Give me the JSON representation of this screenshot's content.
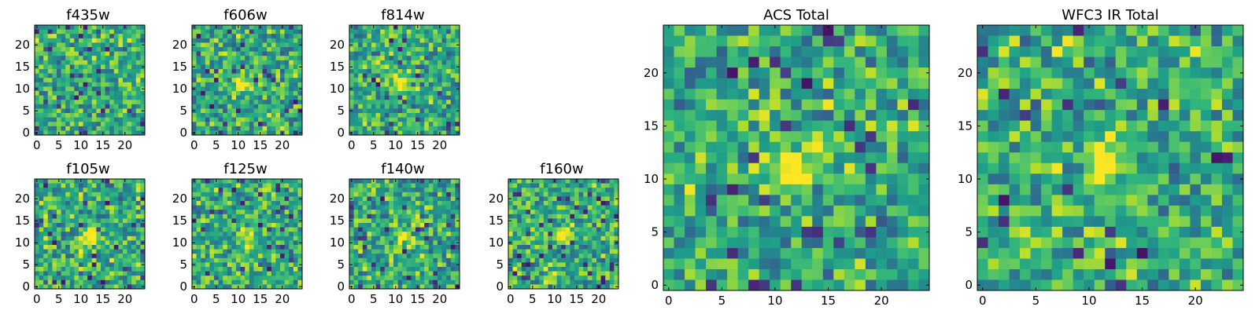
{
  "chart_data": [
    {
      "type": "heatmap",
      "title": "f435w",
      "xticks": [
        "0",
        "5",
        "10",
        "15",
        "20"
      ],
      "yticks": [
        "0",
        "5",
        "10",
        "15",
        "20"
      ],
      "xlim": [
        0,
        24
      ],
      "ylim": [
        0,
        24
      ],
      "grid_size": 25,
      "colormap": "viridis",
      "seed": 11,
      "blob": null
    },
    {
      "type": "heatmap",
      "title": "f606w",
      "xticks": [
        "0",
        "5",
        "10",
        "15",
        "20"
      ],
      "yticks": [
        "0",
        "5",
        "10",
        "15",
        "20"
      ],
      "xlim": [
        0,
        24
      ],
      "ylim": [
        0,
        24
      ],
      "grid_size": 25,
      "colormap": "viridis",
      "seed": 23,
      "blob": {
        "x": 11,
        "y": 11,
        "strength": 0.45
      }
    },
    {
      "type": "heatmap",
      "title": "f814w",
      "xticks": [
        "0",
        "5",
        "10",
        "15",
        "20"
      ],
      "yticks": [
        "0",
        "5",
        "10",
        "15",
        "20"
      ],
      "xlim": [
        0,
        24
      ],
      "ylim": [
        0,
        24
      ],
      "grid_size": 25,
      "colormap": "viridis",
      "seed": 37,
      "blob": {
        "x": 12,
        "y": 11,
        "strength": 0.45
      }
    },
    {
      "type": "heatmap",
      "title": "f105w",
      "xticks": [
        "0",
        "5",
        "10",
        "15",
        "20"
      ],
      "yticks": [
        "0",
        "5",
        "10",
        "15",
        "20"
      ],
      "xlim": [
        0,
        24
      ],
      "ylim": [
        0,
        24
      ],
      "grid_size": 25,
      "colormap": "viridis",
      "seed": 41,
      "blob": {
        "x": 12,
        "y": 11,
        "strength": 0.5
      }
    },
    {
      "type": "heatmap",
      "title": "f125w",
      "xticks": [
        "0",
        "5",
        "10",
        "15",
        "20"
      ],
      "yticks": [
        "0",
        "5",
        "10",
        "15",
        "20"
      ],
      "xlim": [
        0,
        24
      ],
      "ylim": [
        0,
        24
      ],
      "grid_size": 25,
      "colormap": "viridis",
      "seed": 53,
      "blob": {
        "x": 12,
        "y": 11,
        "strength": 0.3
      }
    },
    {
      "type": "heatmap",
      "title": "f140w",
      "xticks": [
        "0",
        "5",
        "10",
        "15",
        "20"
      ],
      "yticks": [
        "0",
        "5",
        "10",
        "15",
        "20"
      ],
      "xlim": [
        0,
        24
      ],
      "ylim": [
        0,
        24
      ],
      "grid_size": 25,
      "colormap": "viridis",
      "seed": 67,
      "blob": {
        "x": 12,
        "y": 11,
        "strength": 0.35
      }
    },
    {
      "type": "heatmap",
      "title": "f160w",
      "xticks": [
        "0",
        "5",
        "10",
        "15",
        "20"
      ],
      "yticks": [
        "0",
        "5",
        "10",
        "15",
        "20"
      ],
      "xlim": [
        0,
        24
      ],
      "ylim": [
        0,
        24
      ],
      "grid_size": 25,
      "colormap": "viridis",
      "seed": 71,
      "blob": {
        "x": 12,
        "y": 12,
        "strength": 0.4
      }
    },
    {
      "type": "heatmap",
      "title": "ACS Total",
      "xticks": [
        "0",
        "5",
        "10",
        "15",
        "20"
      ],
      "yticks": [
        "0",
        "5",
        "10",
        "15",
        "20"
      ],
      "xlim": [
        0,
        24
      ],
      "ylim": [
        0,
        24
      ],
      "grid_size": 25,
      "colormap": "viridis",
      "seed": 83,
      "blob": {
        "x": 11.5,
        "y": 11,
        "strength": 0.6
      }
    },
    {
      "type": "heatmap",
      "title": "WFC3 IR Total",
      "xticks": [
        "0",
        "5",
        "10",
        "15",
        "20"
      ],
      "yticks": [
        "0",
        "5",
        "10",
        "15",
        "20"
      ],
      "xlim": [
        0,
        24
      ],
      "ylim": [
        0,
        24
      ],
      "grid_size": 25,
      "colormap": "viridis",
      "seed": 97,
      "blob": {
        "x": 11.5,
        "y": 11.5,
        "strength": 0.6
      }
    }
  ]
}
